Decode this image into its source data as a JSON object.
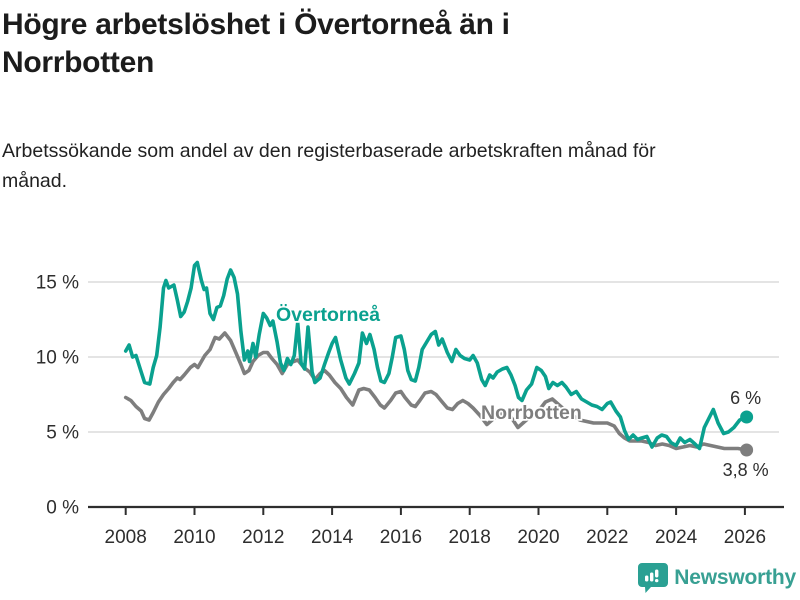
{
  "header": {
    "title": "Högre arbetslöshet i Övertorneå än i Norrbotten",
    "subtitle": "Arbetssökande som andel av den registerbaserade arbetskraften månad för månad."
  },
  "chart_data": {
    "type": "line",
    "title": "Högre arbetslöshet i Övertorneå än i Norrbotten",
    "subtitle": "Arbetssökande som andel av den registerbaserade arbetskraften månad för månad.",
    "grid": true,
    "legend_position": "inline-labels",
    "x_axis": {
      "range": [
        2007.85,
        2027.1
      ],
      "ticks": [
        2008,
        2010,
        2012,
        2014,
        2016,
        2018,
        2020,
        2022,
        2024,
        2026
      ],
      "tick_labels": [
        "2008",
        "2010",
        "2012",
        "2014",
        "2016",
        "2018",
        "2020",
        "2022",
        "2024",
        "2026"
      ]
    },
    "y_axis": {
      "unit": "%",
      "range": [
        0,
        16.6
      ],
      "ticks": [
        0,
        5,
        10,
        15
      ],
      "tick_labels": [
        "0 %",
        "5 %",
        "10 %",
        "15 %"
      ]
    },
    "series": [
      {
        "name": "Övertorneå",
        "color": "#0aa18f",
        "end_label": "6 %",
        "end_value": 6.0,
        "points": [
          [
            2008.0,
            10.4
          ],
          [
            2008.1,
            10.8
          ],
          [
            2008.2,
            10.0
          ],
          [
            2008.3,
            10.1
          ],
          [
            2008.45,
            9.0
          ],
          [
            2008.55,
            8.3
          ],
          [
            2008.7,
            8.2
          ],
          [
            2008.8,
            9.3
          ],
          [
            2008.9,
            10.1
          ],
          [
            2009.0,
            12.0
          ],
          [
            2009.1,
            14.6
          ],
          [
            2009.17,
            15.1
          ],
          [
            2009.25,
            14.6
          ],
          [
            2009.4,
            14.8
          ],
          [
            2009.5,
            13.8
          ],
          [
            2009.6,
            12.7
          ],
          [
            2009.7,
            13.0
          ],
          [
            2009.8,
            13.7
          ],
          [
            2009.9,
            14.6
          ],
          [
            2010.0,
            16.1
          ],
          [
            2010.08,
            16.3
          ],
          [
            2010.2,
            15.1
          ],
          [
            2010.28,
            14.5
          ],
          [
            2010.35,
            14.6
          ],
          [
            2010.45,
            12.9
          ],
          [
            2010.55,
            12.5
          ],
          [
            2010.65,
            13.3
          ],
          [
            2010.75,
            13.4
          ],
          [
            2010.85,
            14.1
          ],
          [
            2010.95,
            15.2
          ],
          [
            2011.05,
            15.8
          ],
          [
            2011.15,
            15.3
          ],
          [
            2011.25,
            14.2
          ],
          [
            2011.35,
            11.7
          ],
          [
            2011.45,
            9.8
          ],
          [
            2011.55,
            10.4
          ],
          [
            2011.6,
            9.7
          ],
          [
            2011.7,
            10.9
          ],
          [
            2011.78,
            10.0
          ],
          [
            2011.88,
            11.5
          ],
          [
            2012.0,
            12.9
          ],
          [
            2012.1,
            12.6
          ],
          [
            2012.2,
            12.1
          ],
          [
            2012.28,
            12.4
          ],
          [
            2012.4,
            11.0
          ],
          [
            2012.5,
            9.6
          ],
          [
            2012.6,
            9.1
          ],
          [
            2012.7,
            9.9
          ],
          [
            2012.8,
            9.5
          ],
          [
            2012.9,
            10.1
          ],
          [
            2013.0,
            12.3
          ],
          [
            2013.1,
            9.6
          ],
          [
            2013.2,
            9.2
          ],
          [
            2013.3,
            12.0
          ],
          [
            2013.42,
            9.0
          ],
          [
            2013.5,
            8.3
          ],
          [
            2013.65,
            8.6
          ],
          [
            2013.78,
            9.5
          ],
          [
            2013.9,
            10.3
          ],
          [
            2014.0,
            10.9
          ],
          [
            2014.1,
            11.3
          ],
          [
            2014.25,
            9.8
          ],
          [
            2014.4,
            8.6
          ],
          [
            2014.5,
            8.2
          ],
          [
            2014.65,
            8.9
          ],
          [
            2014.78,
            9.6
          ],
          [
            2014.88,
            11.6
          ],
          [
            2015.0,
            10.9
          ],
          [
            2015.1,
            11.5
          ],
          [
            2015.22,
            10.5
          ],
          [
            2015.32,
            9.3
          ],
          [
            2015.42,
            8.4
          ],
          [
            2015.52,
            8.3
          ],
          [
            2015.65,
            8.9
          ],
          [
            2015.75,
            10.0
          ],
          [
            2015.85,
            11.3
          ],
          [
            2016.0,
            11.4
          ],
          [
            2016.1,
            10.5
          ],
          [
            2016.2,
            9.1
          ],
          [
            2016.3,
            8.5
          ],
          [
            2016.42,
            8.4
          ],
          [
            2016.52,
            9.3
          ],
          [
            2016.62,
            10.5
          ],
          [
            2016.75,
            11.0
          ],
          [
            2016.88,
            11.5
          ],
          [
            2017.0,
            11.7
          ],
          [
            2017.1,
            10.8
          ],
          [
            2017.2,
            11.2
          ],
          [
            2017.35,
            10.3
          ],
          [
            2017.48,
            9.7
          ],
          [
            2017.6,
            10.5
          ],
          [
            2017.72,
            10.1
          ],
          [
            2017.85,
            9.9
          ],
          [
            2018.0,
            9.8
          ],
          [
            2018.1,
            10.1
          ],
          [
            2018.22,
            9.6
          ],
          [
            2018.35,
            8.5
          ],
          [
            2018.45,
            8.1
          ],
          [
            2018.58,
            8.8
          ],
          [
            2018.68,
            8.6
          ],
          [
            2018.8,
            9.0
          ],
          [
            2018.95,
            9.2
          ],
          [
            2019.08,
            9.3
          ],
          [
            2019.2,
            8.8
          ],
          [
            2019.32,
            8.1
          ],
          [
            2019.42,
            7.3
          ],
          [
            2019.52,
            7.1
          ],
          [
            2019.65,
            7.8
          ],
          [
            2019.8,
            8.2
          ],
          [
            2019.95,
            9.3
          ],
          [
            2020.08,
            9.1
          ],
          [
            2020.2,
            8.7
          ],
          [
            2020.3,
            7.9
          ],
          [
            2020.42,
            8.3
          ],
          [
            2020.55,
            8.1
          ],
          [
            2020.68,
            8.3
          ],
          [
            2020.8,
            8.0
          ],
          [
            2020.95,
            7.5
          ],
          [
            2021.1,
            7.7
          ],
          [
            2021.25,
            7.2
          ],
          [
            2021.4,
            7.0
          ],
          [
            2021.55,
            6.8
          ],
          [
            2021.7,
            6.7
          ],
          [
            2021.85,
            6.5
          ],
          [
            2022.0,
            6.9
          ],
          [
            2022.1,
            7.0
          ],
          [
            2022.25,
            6.4
          ],
          [
            2022.38,
            6.0
          ],
          [
            2022.5,
            5.1
          ],
          [
            2022.62,
            4.5
          ],
          [
            2022.75,
            4.8
          ],
          [
            2022.88,
            4.5
          ],
          [
            2023.0,
            4.6
          ],
          [
            2023.15,
            4.7
          ],
          [
            2023.3,
            4.0
          ],
          [
            2023.45,
            4.6
          ],
          [
            2023.58,
            4.8
          ],
          [
            2023.72,
            4.7
          ],
          [
            2023.85,
            4.3
          ],
          [
            2024.0,
            4.1
          ],
          [
            2024.12,
            4.6
          ],
          [
            2024.25,
            4.3
          ],
          [
            2024.4,
            4.5
          ],
          [
            2024.55,
            4.2
          ],
          [
            2024.68,
            3.9
          ],
          [
            2024.82,
            5.3
          ],
          [
            2024.95,
            5.9
          ],
          [
            2025.08,
            6.5
          ],
          [
            2025.22,
            5.6
          ],
          [
            2025.38,
            4.9
          ],
          [
            2025.52,
            5.0
          ],
          [
            2025.68,
            5.3
          ],
          [
            2025.85,
            5.8
          ],
          [
            2026.05,
            6.0
          ]
        ]
      },
      {
        "name": "Norrbotten",
        "color": "#7e7e7e",
        "end_label": "3,8 %",
        "end_value": 3.8,
        "points": [
          [
            2008.0,
            7.3
          ],
          [
            2008.15,
            7.1
          ],
          [
            2008.3,
            6.7
          ],
          [
            2008.45,
            6.4
          ],
          [
            2008.55,
            5.9
          ],
          [
            2008.68,
            5.8
          ],
          [
            2008.8,
            6.3
          ],
          [
            2008.95,
            7.0
          ],
          [
            2009.1,
            7.5
          ],
          [
            2009.25,
            7.9
          ],
          [
            2009.38,
            8.3
          ],
          [
            2009.5,
            8.6
          ],
          [
            2009.58,
            8.5
          ],
          [
            2009.7,
            8.8
          ],
          [
            2009.88,
            9.3
          ],
          [
            2010.0,
            9.5
          ],
          [
            2010.1,
            9.3
          ],
          [
            2010.3,
            10.1
          ],
          [
            2010.45,
            10.5
          ],
          [
            2010.6,
            11.3
          ],
          [
            2010.72,
            11.2
          ],
          [
            2010.88,
            11.6
          ],
          [
            2011.05,
            11.1
          ],
          [
            2011.2,
            10.3
          ],
          [
            2011.35,
            9.5
          ],
          [
            2011.45,
            8.9
          ],
          [
            2011.58,
            9.1
          ],
          [
            2011.7,
            9.7
          ],
          [
            2011.85,
            10.1
          ],
          [
            2012.0,
            10.3
          ],
          [
            2012.12,
            10.3
          ],
          [
            2012.25,
            9.9
          ],
          [
            2012.4,
            9.5
          ],
          [
            2012.55,
            8.9
          ],
          [
            2012.7,
            9.5
          ],
          [
            2012.88,
            9.7
          ],
          [
            2013.0,
            9.8
          ],
          [
            2013.18,
            9.3
          ],
          [
            2013.35,
            9.0
          ],
          [
            2013.5,
            8.5
          ],
          [
            2013.65,
            8.9
          ],
          [
            2013.78,
            9.1
          ],
          [
            2013.92,
            8.8
          ],
          [
            2014.08,
            8.3
          ],
          [
            2014.25,
            7.9
          ],
          [
            2014.42,
            7.3
          ],
          [
            2014.6,
            6.8
          ],
          [
            2014.78,
            7.8
          ],
          [
            2014.92,
            7.9
          ],
          [
            2015.08,
            7.8
          ],
          [
            2015.25,
            7.3
          ],
          [
            2015.4,
            6.8
          ],
          [
            2015.52,
            6.6
          ],
          [
            2015.7,
            7.1
          ],
          [
            2015.85,
            7.6
          ],
          [
            2016.0,
            7.7
          ],
          [
            2016.12,
            7.3
          ],
          [
            2016.3,
            6.8
          ],
          [
            2016.42,
            6.7
          ],
          [
            2016.55,
            7.1
          ],
          [
            2016.7,
            7.6
          ],
          [
            2016.88,
            7.7
          ],
          [
            2017.02,
            7.5
          ],
          [
            2017.2,
            7.0
          ],
          [
            2017.35,
            6.6
          ],
          [
            2017.5,
            6.5
          ],
          [
            2017.65,
            6.9
          ],
          [
            2017.8,
            7.1
          ],
          [
            2017.95,
            6.9
          ],
          [
            2018.1,
            6.6
          ],
          [
            2018.3,
            6.1
          ],
          [
            2018.5,
            5.5
          ],
          [
            2018.7,
            5.9
          ],
          [
            2018.9,
            6.2
          ],
          [
            2019.05,
            6.3
          ],
          [
            2019.2,
            6.0
          ],
          [
            2019.4,
            5.3
          ],
          [
            2019.6,
            5.7
          ],
          [
            2019.8,
            6.1
          ],
          [
            2020.0,
            6.4
          ],
          [
            2020.2,
            7.0
          ],
          [
            2020.4,
            7.2
          ],
          [
            2020.6,
            6.8
          ],
          [
            2020.8,
            6.4
          ],
          [
            2021.0,
            6.1
          ],
          [
            2021.2,
            5.8
          ],
          [
            2021.4,
            5.7
          ],
          [
            2021.6,
            5.6
          ],
          [
            2021.8,
            5.6
          ],
          [
            2022.0,
            5.6
          ],
          [
            2022.2,
            5.4
          ],
          [
            2022.35,
            4.9
          ],
          [
            2022.5,
            4.6
          ],
          [
            2022.65,
            4.4
          ],
          [
            2022.8,
            4.4
          ],
          [
            2023.0,
            4.4
          ],
          [
            2023.2,
            4.3
          ],
          [
            2023.4,
            4.1
          ],
          [
            2023.6,
            4.2
          ],
          [
            2023.8,
            4.1
          ],
          [
            2024.0,
            3.9
          ],
          [
            2024.2,
            4.0
          ],
          [
            2024.4,
            4.1
          ],
          [
            2024.6,
            4.0
          ],
          [
            2024.8,
            4.2
          ],
          [
            2025.0,
            4.1
          ],
          [
            2025.2,
            4.0
          ],
          [
            2025.4,
            3.9
          ],
          [
            2025.6,
            3.9
          ],
          [
            2025.8,
            3.9
          ],
          [
            2026.05,
            3.8
          ]
        ]
      }
    ]
  },
  "colors": {
    "background": "#ffffff",
    "title_text": "#1c1c1c",
    "axis_text": "#2e2e2e",
    "gridline": "#dcdcdc",
    "axis_line": "#2e2e2e",
    "overtornea": "#0aa18f",
    "norrbotten": "#7e7e7e",
    "brand_teal": "#38a093"
  },
  "footer": {
    "brand": "Newsworthy"
  }
}
